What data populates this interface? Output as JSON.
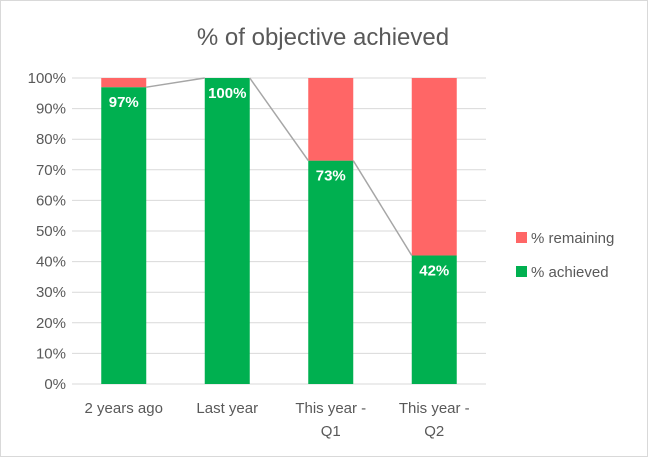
{
  "chart_data": {
    "type": "bar",
    "stacked": true,
    "title": "% of objective achieved",
    "categories": [
      [
        "2 years ago"
      ],
      [
        "Last year"
      ],
      [
        "This year -",
        "Q1"
      ],
      [
        "This year -",
        "Q2"
      ]
    ],
    "series": [
      {
        "name": "% achieved",
        "values": [
          97,
          100,
          73,
          42
        ],
        "color": "#00b050"
      },
      {
        "name": "% remaining",
        "values": [
          3,
          0,
          27,
          58
        ],
        "color": "#ff6666"
      }
    ],
    "data_labels": [
      "97%",
      "100%",
      "73%",
      "42%"
    ],
    "trend_line": {
      "values": [
        97,
        100,
        73,
        42
      ],
      "color": "#a6a6a6"
    },
    "y_ticks": [
      "0%",
      "10%",
      "20%",
      "30%",
      "40%",
      "50%",
      "60%",
      "70%",
      "80%",
      "90%",
      "100%"
    ],
    "ylim": [
      0,
      100
    ],
    "grid": true,
    "gridline_color": "#d9d9d9",
    "legend": {
      "placement": "right",
      "entries": [
        {
          "label": "% remaining",
          "color": "#ff6666"
        },
        {
          "label": "% achieved",
          "color": "#00b050"
        }
      ]
    }
  }
}
